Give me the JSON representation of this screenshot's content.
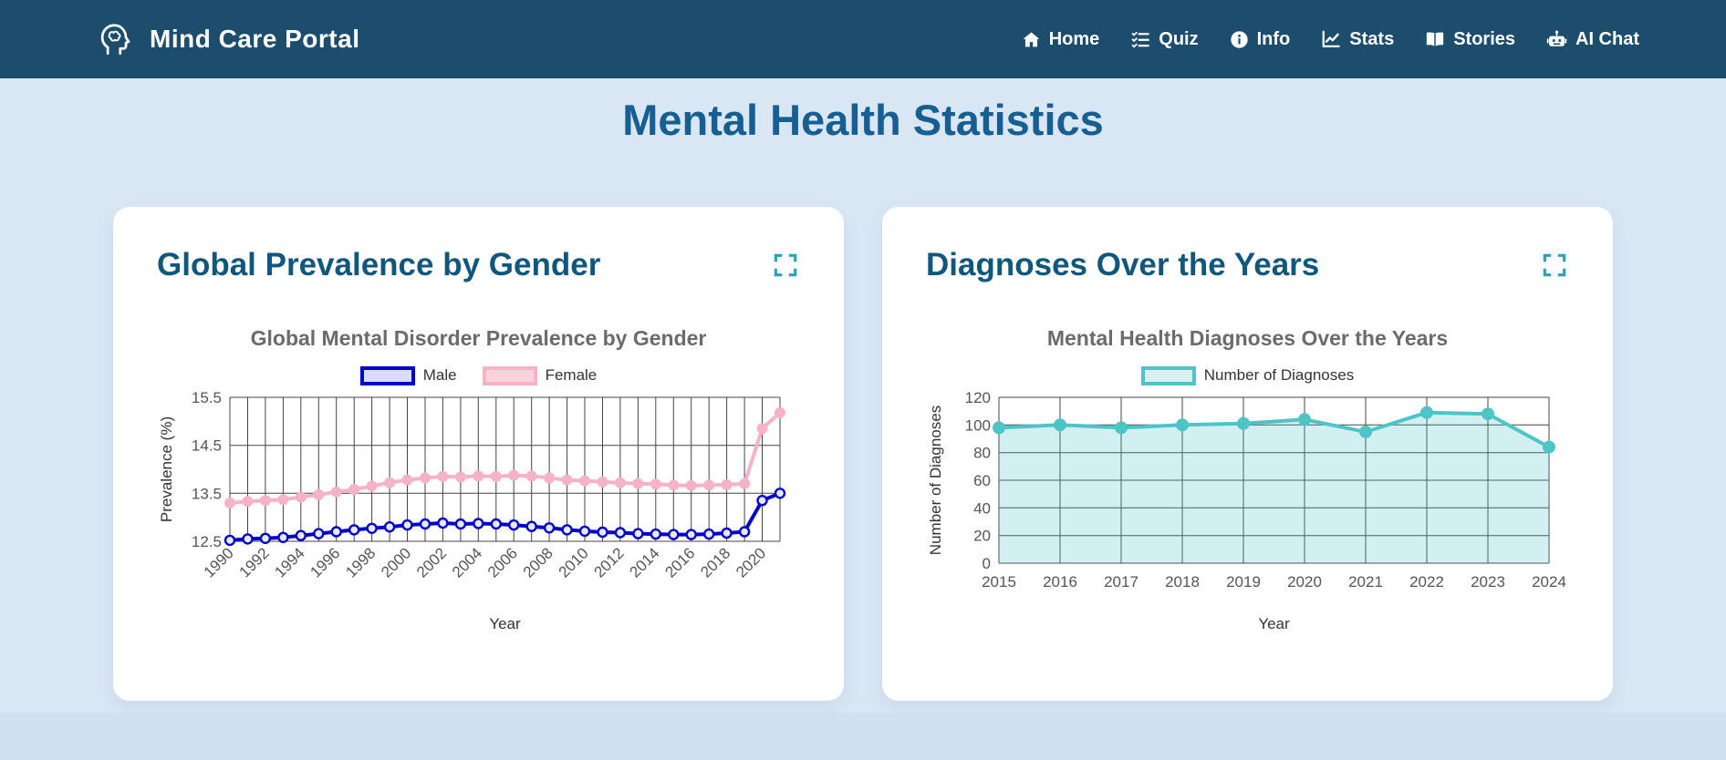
{
  "colors": {
    "navbar_bg": "#1d4d6d",
    "page_bg": "#d9e7f5",
    "footer_band": "#cfe0f0",
    "heading": "#175f93",
    "card_title": "#11567d",
    "accent_teal": "#2aa4b5",
    "chart_title": "#6b6b6b",
    "card_bg": "#ffffff"
  },
  "brand": {
    "title": "Mind Care Portal"
  },
  "nav": {
    "items": [
      {
        "label": "Home"
      },
      {
        "label": "Quiz"
      },
      {
        "label": "Info"
      },
      {
        "label": "Stats"
      },
      {
        "label": "Stories"
      },
      {
        "label": "AI Chat"
      }
    ]
  },
  "page": {
    "title": "Mental Health Statistics"
  },
  "cards": [
    {
      "title": "Global Prevalence by Gender"
    },
    {
      "title": "Diagnoses Over the Years"
    }
  ],
  "chart_data": [
    {
      "type": "line",
      "title": "Global Mental Disorder Prevalence by Gender",
      "xlabel": "Year",
      "ylabel": "Prevalence (%)",
      "x": [
        1990,
        1991,
        1992,
        1993,
        1994,
        1995,
        1996,
        1997,
        1998,
        1999,
        2000,
        2001,
        2002,
        2003,
        2004,
        2005,
        2006,
        2007,
        2008,
        2009,
        2010,
        2011,
        2012,
        2013,
        2014,
        2015,
        2016,
        2017,
        2018,
        2019,
        2020,
        2021
      ],
      "x_tick_step": 2,
      "ylim": [
        12.5,
        15.5
      ],
      "yticks": [
        12.5,
        13.5,
        14.5,
        15.5
      ],
      "grid": true,
      "grid_color": "#444444",
      "legend_position": "top",
      "series": [
        {
          "name": "Male",
          "color": "#0000cc",
          "legend_fill": "#dcdcf8",
          "point_fill": "#e9e9fc",
          "line_width": 4,
          "point_radius": 5,
          "point_stroke": 2.4,
          "values": [
            12.52,
            12.55,
            12.56,
            12.58,
            12.62,
            12.66,
            12.7,
            12.74,
            12.77,
            12.8,
            12.84,
            12.86,
            12.88,
            12.86,
            12.87,
            12.86,
            12.84,
            12.81,
            12.78,
            12.74,
            12.71,
            12.69,
            12.68,
            12.66,
            12.65,
            12.64,
            12.64,
            12.65,
            12.67,
            12.7,
            13.35,
            13.5
          ]
        },
        {
          "name": "Female",
          "color": "#f5b3c5",
          "legend_fill": "#fad2dd",
          "point_fill": "#f5b3c5",
          "line_width": 4,
          "point_radius": 5,
          "point_stroke": 2,
          "values": [
            13.3,
            13.33,
            13.35,
            13.37,
            13.42,
            13.47,
            13.53,
            13.58,
            13.65,
            13.72,
            13.78,
            13.82,
            13.85,
            13.84,
            13.86,
            13.85,
            13.87,
            13.86,
            13.82,
            13.78,
            13.76,
            13.74,
            13.72,
            13.7,
            13.69,
            13.67,
            13.66,
            13.67,
            13.68,
            13.7,
            14.85,
            15.18
          ]
        }
      ]
    },
    {
      "type": "line",
      "title": "Mental Health Diagnoses Over the Years",
      "xlabel": "Year",
      "ylabel": "Number of Diagnoses",
      "x": [
        2015,
        2016,
        2017,
        2018,
        2019,
        2020,
        2021,
        2022,
        2023,
        2024
      ],
      "x_tick_step": 1,
      "ylim": [
        0,
        120
      ],
      "yticks": [
        0,
        20,
        40,
        60,
        80,
        100,
        120
      ],
      "grid": true,
      "grid_color": "#444444",
      "legend_position": "top",
      "series": [
        {
          "name": "Number of Diagnoses",
          "color": "#4dc5c7",
          "legend_fill": "#d9f0f1",
          "point_fill": "#4dc5c7",
          "line_width": 4,
          "point_radius": 6,
          "point_stroke": 2,
          "area_fill": "rgba(77,197,199,0.25)",
          "values": [
            98,
            100,
            98,
            100,
            101,
            104,
            95,
            109,
            108,
            84
          ]
        }
      ]
    }
  ]
}
